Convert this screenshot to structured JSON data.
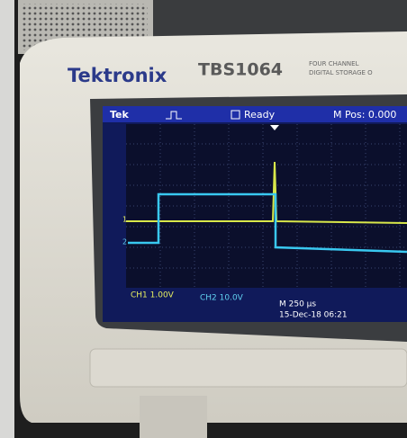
{
  "brand": "Tektronix",
  "model": "TBS1064",
  "model_note": [
    "FOUR CHANNEL",
    "DIGITAL STORAGE O"
  ],
  "screen": {
    "header": {
      "logo": "Tek",
      "status": "Ready",
      "position": "M Pos: 0.000"
    },
    "markers": [
      "1",
      "2"
    ],
    "footer": {
      "ch1": "CH1  1.00V",
      "ch2": "CH2  10.0V",
      "timebase": "M 250 µs",
      "timestamp": "15-Dec-18 06:21"
    }
  }
}
